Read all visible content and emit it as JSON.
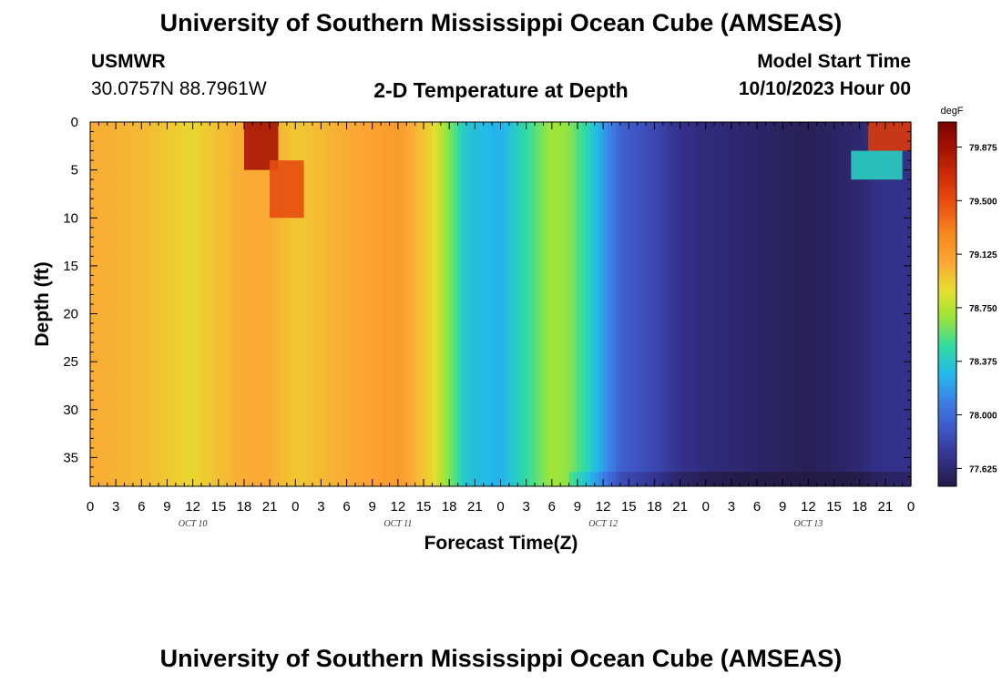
{
  "header": {
    "title": "University of Southern Mississippi Ocean Cube (AMSEAS)",
    "station": "USMWR",
    "coords": "30.0757N  88.7961W",
    "subtitle": "2-D Temperature at Depth",
    "model_start_label": "Model Start Time",
    "model_start_value": "10/10/2023 Hour 00"
  },
  "footer": {
    "title": "University of Southern Mississippi Ocean Cube (AMSEAS)"
  },
  "chart_data": {
    "type": "heatmap",
    "xlabel": "Forecast Time(Z)",
    "ylabel": "Depth (ft)",
    "x_range_hours": [
      0,
      96
    ],
    "x_tick_step_hours": 3,
    "x_tick_labels": [
      "0",
      "3",
      "6",
      "9",
      "12",
      "15",
      "18",
      "21",
      "0",
      "3",
      "6",
      "9",
      "12",
      "15",
      "18",
      "21",
      "0",
      "3",
      "6",
      "9",
      "12",
      "15",
      "18",
      "21",
      "0",
      "3",
      "6",
      "9",
      "12",
      "15",
      "18",
      "21",
      "0"
    ],
    "day_labels": [
      {
        "hour": 12,
        "label": "OCT 10"
      },
      {
        "hour": 36,
        "label": "OCT 11"
      },
      {
        "hour": 60,
        "label": "OCT 12"
      },
      {
        "hour": 84,
        "label": "OCT 13"
      }
    ],
    "y_range_ft": [
      0,
      38
    ],
    "y_ticks": [
      0,
      5,
      10,
      15,
      20,
      25,
      30,
      35
    ],
    "y_tick_labels": [
      "0",
      "5",
      "10",
      "15",
      "20",
      "25",
      "30",
      "35"
    ],
    "colorbar": {
      "unit": "degF",
      "range": [
        77.5,
        80.05
      ],
      "ticks": [
        79.875,
        79.5,
        79.125,
        78.75,
        78.375,
        78.0,
        77.625
      ],
      "tick_labels": [
        "79.875",
        "79.500",
        "79.125",
        "78.750",
        "78.375",
        "78.000",
        "77.625"
      ],
      "colors": [
        "#241a44",
        "#33318c",
        "#3f55c4",
        "#3d7ee4",
        "#23b9ea",
        "#31dca2",
        "#9ae53a",
        "#e7de2e",
        "#fca636",
        "#f6891e",
        "#eb5312",
        "#d02f07",
        "#a61303",
        "#7a0303"
      ]
    },
    "temperature_profile": {
      "hours": [
        0,
        6,
        12,
        18,
        21,
        24,
        30,
        36,
        40,
        44,
        48,
        52,
        54,
        56,
        58,
        62,
        66,
        69,
        72,
        78,
        84,
        90,
        92,
        96
      ],
      "degF": [
        79.05,
        79.0,
        78.9,
        79.05,
        79.05,
        78.95,
        79.05,
        79.15,
        78.9,
        78.35,
        78.25,
        78.55,
        78.7,
        78.65,
        78.45,
        77.95,
        77.82,
        77.7,
        77.65,
        77.6,
        77.55,
        77.62,
        77.68,
        77.7
      ]
    },
    "surface_warm_anomalies": [
      {
        "hour_center": 20,
        "depth_top_ft": 0,
        "depth_bottom_ft": 5,
        "degF": 79.85
      },
      {
        "hour_center": 23,
        "depth_top_ft": 4,
        "depth_bottom_ft": 10,
        "degF": 79.5
      },
      {
        "hour_center": 94,
        "depth_top_ft": 0,
        "depth_bottom_ft": 3,
        "degF": 79.6
      },
      {
        "hour_center": 92,
        "depth_top_ft": 3,
        "depth_bottom_ft": 6,
        "degF": 78.4
      }
    ]
  }
}
